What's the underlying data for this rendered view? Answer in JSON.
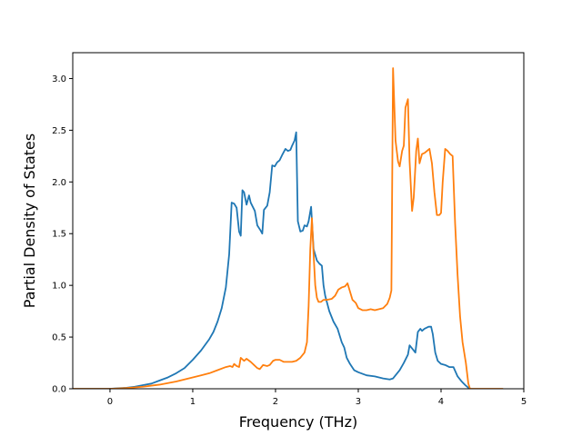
{
  "chart_data": {
    "type": "line",
    "title": "",
    "xlabel": "Frequency (THz)",
    "ylabel": "Partial Density of States",
    "xlim": [
      -0.45,
      5.0
    ],
    "ylim": [
      0.0,
      3.25
    ],
    "xticks": [
      0,
      1,
      2,
      3,
      4,
      5
    ],
    "xtick_labels": [
      "0",
      "1",
      "2",
      "3",
      "4",
      "5"
    ],
    "yticks": [
      0.0,
      0.5,
      1.0,
      1.5,
      2.0,
      2.5,
      3.0
    ],
    "ytick_labels": [
      "0.0",
      "0.5",
      "1.0",
      "1.5",
      "2.0",
      "2.5",
      "3.0"
    ],
    "grid": false,
    "legend": "none",
    "series": [
      {
        "color": "#1f77b4",
        "points": [
          [
            -0.45,
            0.0
          ],
          [
            0.0,
            0.0
          ],
          [
            0.1,
            0.005
          ],
          [
            0.2,
            0.01
          ],
          [
            0.3,
            0.02
          ],
          [
            0.4,
            0.035
          ],
          [
            0.5,
            0.05
          ],
          [
            0.6,
            0.08
          ],
          [
            0.7,
            0.11
          ],
          [
            0.8,
            0.15
          ],
          [
            0.9,
            0.2
          ],
          [
            1.0,
            0.28
          ],
          [
            1.1,
            0.37
          ],
          [
            1.2,
            0.48
          ],
          [
            1.25,
            0.55
          ],
          [
            1.3,
            0.65
          ],
          [
            1.35,
            0.78
          ],
          [
            1.4,
            0.98
          ],
          [
            1.44,
            1.3
          ],
          [
            1.47,
            1.8
          ],
          [
            1.5,
            1.79
          ],
          [
            1.53,
            1.75
          ],
          [
            1.56,
            1.52
          ],
          [
            1.58,
            1.48
          ],
          [
            1.6,
            1.92
          ],
          [
            1.62,
            1.9
          ],
          [
            1.65,
            1.78
          ],
          [
            1.68,
            1.87
          ],
          [
            1.7,
            1.8
          ],
          [
            1.75,
            1.72
          ],
          [
            1.78,
            1.58
          ],
          [
            1.82,
            1.53
          ],
          [
            1.84,
            1.5
          ],
          [
            1.86,
            1.73
          ],
          [
            1.9,
            1.77
          ],
          [
            1.93,
            1.9
          ],
          [
            1.96,
            2.16
          ],
          [
            1.99,
            2.15
          ],
          [
            2.02,
            2.19
          ],
          [
            2.05,
            2.21
          ],
          [
            2.08,
            2.26
          ],
          [
            2.1,
            2.29
          ],
          [
            2.12,
            2.32
          ],
          [
            2.15,
            2.3
          ],
          [
            2.18,
            2.31
          ],
          [
            2.2,
            2.35
          ],
          [
            2.23,
            2.4
          ],
          [
            2.25,
            2.48
          ],
          [
            2.27,
            1.62
          ],
          [
            2.3,
            1.52
          ],
          [
            2.33,
            1.53
          ],
          [
            2.35,
            1.58
          ],
          [
            2.38,
            1.57
          ],
          [
            2.4,
            1.62
          ],
          [
            2.43,
            1.76
          ],
          [
            2.46,
            1.35
          ],
          [
            2.5,
            1.24
          ],
          [
            2.53,
            1.21
          ],
          [
            2.56,
            1.19
          ],
          [
            2.58,
            1.0
          ],
          [
            2.6,
            0.9
          ],
          [
            2.65,
            0.75
          ],
          [
            2.7,
            0.65
          ],
          [
            2.75,
            0.58
          ],
          [
            2.8,
            0.45
          ],
          [
            2.83,
            0.4
          ],
          [
            2.86,
            0.3
          ],
          [
            2.9,
            0.24
          ],
          [
            2.95,
            0.18
          ],
          [
            3.0,
            0.16
          ],
          [
            3.1,
            0.13
          ],
          [
            3.2,
            0.12
          ],
          [
            3.3,
            0.1
          ],
          [
            3.38,
            0.09
          ],
          [
            3.42,
            0.1
          ],
          [
            3.45,
            0.13
          ],
          [
            3.5,
            0.18
          ],
          [
            3.55,
            0.25
          ],
          [
            3.6,
            0.33
          ],
          [
            3.62,
            0.42
          ],
          [
            3.66,
            0.38
          ],
          [
            3.69,
            0.35
          ],
          [
            3.72,
            0.55
          ],
          [
            3.75,
            0.58
          ],
          [
            3.77,
            0.56
          ],
          [
            3.8,
            0.58
          ],
          [
            3.85,
            0.6
          ],
          [
            3.88,
            0.6
          ],
          [
            3.9,
            0.53
          ],
          [
            3.93,
            0.35
          ],
          [
            3.96,
            0.27
          ],
          [
            4.0,
            0.24
          ],
          [
            4.05,
            0.23
          ],
          [
            4.1,
            0.21
          ],
          [
            4.15,
            0.21
          ],
          [
            4.2,
            0.12
          ],
          [
            4.25,
            0.07
          ],
          [
            4.3,
            0.03
          ],
          [
            4.33,
            0.01
          ],
          [
            4.35,
            0.0
          ]
        ]
      },
      {
        "color": "#ff7f0e",
        "points": [
          [
            -0.45,
            0.0
          ],
          [
            0.0,
            0.0
          ],
          [
            0.1,
            0.003
          ],
          [
            0.2,
            0.007
          ],
          [
            0.3,
            0.013
          ],
          [
            0.4,
            0.02
          ],
          [
            0.5,
            0.03
          ],
          [
            0.6,
            0.04
          ],
          [
            0.7,
            0.055
          ],
          [
            0.8,
            0.07
          ],
          [
            0.9,
            0.09
          ],
          [
            1.0,
            0.11
          ],
          [
            1.1,
            0.13
          ],
          [
            1.2,
            0.15
          ],
          [
            1.3,
            0.18
          ],
          [
            1.4,
            0.21
          ],
          [
            1.45,
            0.22
          ],
          [
            1.48,
            0.21
          ],
          [
            1.5,
            0.24
          ],
          [
            1.53,
            0.22
          ],
          [
            1.56,
            0.21
          ],
          [
            1.58,
            0.3
          ],
          [
            1.62,
            0.27
          ],
          [
            1.65,
            0.29
          ],
          [
            1.7,
            0.26
          ],
          [
            1.74,
            0.23
          ],
          [
            1.78,
            0.2
          ],
          [
            1.81,
            0.19
          ],
          [
            1.85,
            0.23
          ],
          [
            1.9,
            0.22
          ],
          [
            1.93,
            0.23
          ],
          [
            1.97,
            0.27
          ],
          [
            2.0,
            0.28
          ],
          [
            2.05,
            0.28
          ],
          [
            2.1,
            0.26
          ],
          [
            2.15,
            0.26
          ],
          [
            2.2,
            0.26
          ],
          [
            2.25,
            0.27
          ],
          [
            2.3,
            0.3
          ],
          [
            2.35,
            0.35
          ],
          [
            2.38,
            0.45
          ],
          [
            2.4,
            0.8
          ],
          [
            2.42,
            1.35
          ],
          [
            2.44,
            1.65
          ],
          [
            2.46,
            1.3
          ],
          [
            2.48,
            1.0
          ],
          [
            2.5,
            0.88
          ],
          [
            2.52,
            0.84
          ],
          [
            2.55,
            0.84
          ],
          [
            2.58,
            0.86
          ],
          [
            2.62,
            0.86
          ],
          [
            2.68,
            0.87
          ],
          [
            2.72,
            0.9
          ],
          [
            2.76,
            0.96
          ],
          [
            2.8,
            0.98
          ],
          [
            2.84,
            0.99
          ],
          [
            2.87,
            1.02
          ],
          [
            2.9,
            0.94
          ],
          [
            2.93,
            0.86
          ],
          [
            2.97,
            0.83
          ],
          [
            3.0,
            0.78
          ],
          [
            3.05,
            0.76
          ],
          [
            3.1,
            0.76
          ],
          [
            3.15,
            0.77
          ],
          [
            3.2,
            0.76
          ],
          [
            3.25,
            0.77
          ],
          [
            3.3,
            0.78
          ],
          [
            3.35,
            0.82
          ],
          [
            3.38,
            0.88
          ],
          [
            3.4,
            0.95
          ],
          [
            3.42,
            3.1
          ],
          [
            3.45,
            2.4
          ],
          [
            3.48,
            2.2
          ],
          [
            3.5,
            2.15
          ],
          [
            3.53,
            2.3
          ],
          [
            3.55,
            2.35
          ],
          [
            3.57,
            2.72
          ],
          [
            3.6,
            2.8
          ],
          [
            3.62,
            2.2
          ],
          [
            3.65,
            1.72
          ],
          [
            3.67,
            1.85
          ],
          [
            3.7,
            2.3
          ],
          [
            3.72,
            2.42
          ],
          [
            3.74,
            2.18
          ],
          [
            3.77,
            2.27
          ],
          [
            3.8,
            2.28
          ],
          [
            3.83,
            2.3
          ],
          [
            3.86,
            2.32
          ],
          [
            3.89,
            2.18
          ],
          [
            3.92,
            1.9
          ],
          [
            3.95,
            1.68
          ],
          [
            3.98,
            1.68
          ],
          [
            4.0,
            1.7
          ],
          [
            4.02,
            2.0
          ],
          [
            4.05,
            2.32
          ],
          [
            4.08,
            2.3
          ],
          [
            4.11,
            2.27
          ],
          [
            4.14,
            2.25
          ],
          [
            4.17,
            1.6
          ],
          [
            4.2,
            1.1
          ],
          [
            4.23,
            0.7
          ],
          [
            4.26,
            0.45
          ],
          [
            4.3,
            0.25
          ],
          [
            4.33,
            0.05
          ],
          [
            4.35,
            0.0
          ],
          [
            4.75,
            0.0
          ]
        ]
      }
    ]
  }
}
